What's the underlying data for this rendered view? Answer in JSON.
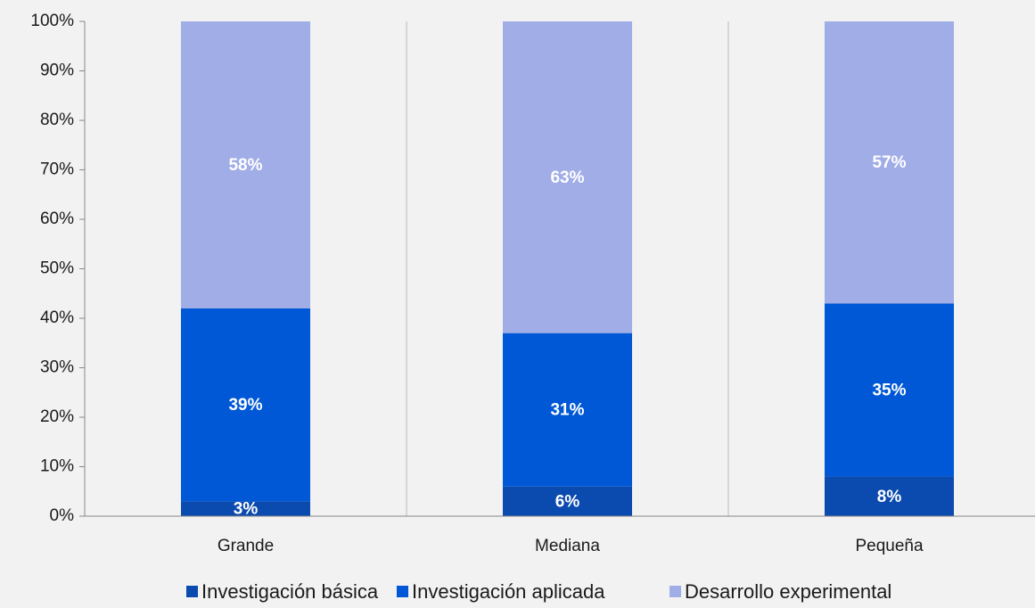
{
  "chart_data": {
    "type": "bar",
    "stacked": true,
    "categories": [
      "Grande",
      "Mediana",
      "Pequeña"
    ],
    "series": [
      {
        "name": "Investigación básica",
        "color": "#0b4aae",
        "values": [
          3,
          6,
          8
        ],
        "value_labels": [
          "3%",
          "6%",
          "8%"
        ]
      },
      {
        "name": "Investigación aplicada",
        "color": "#0058d6",
        "values": [
          39,
          31,
          35
        ],
        "value_labels": [
          "39%",
          "31%",
          "35%"
        ]
      },
      {
        "name": "Desarrollo experimental",
        "color": "#a0ade6",
        "values": [
          58,
          63,
          57
        ],
        "value_labels": [
          "58%",
          "63%",
          "57%"
        ]
      }
    ],
    "ylim": [
      0,
      100
    ],
    "yticks": [
      {
        "value": 0,
        "label": "0%"
      },
      {
        "value": 10,
        "label": "10%"
      },
      {
        "value": 20,
        "label": "20%"
      },
      {
        "value": 30,
        "label": "30%"
      },
      {
        "value": 40,
        "label": "40%"
      },
      {
        "value": 50,
        "label": "50%"
      },
      {
        "value": 60,
        "label": "60%"
      },
      {
        "value": 70,
        "label": "70%"
      },
      {
        "value": 80,
        "label": "80%"
      },
      {
        "value": 90,
        "label": "90%"
      },
      {
        "value": 100,
        "label": "100%"
      }
    ],
    "legend": "bottom"
  }
}
